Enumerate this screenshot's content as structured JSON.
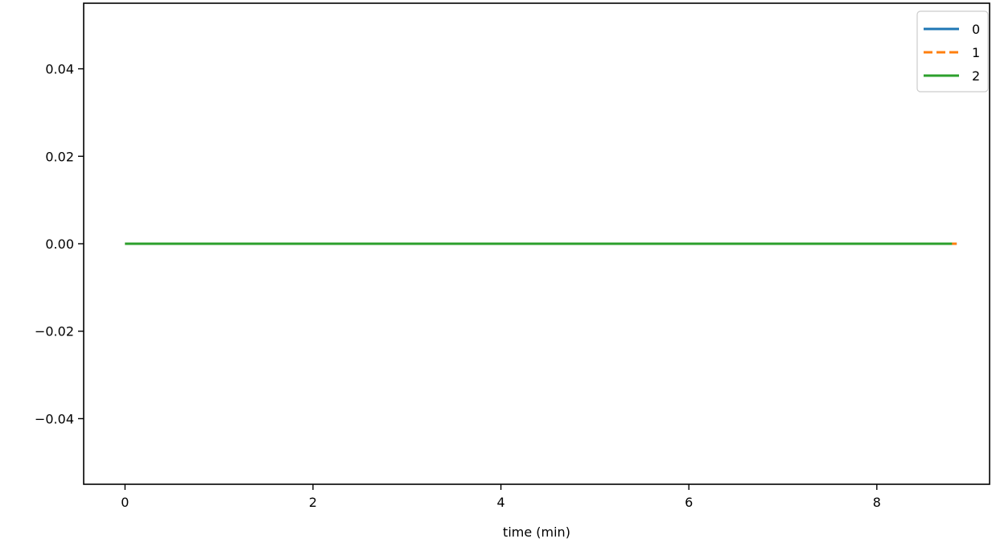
{
  "chart_data": {
    "type": "line",
    "title": "",
    "xlabel": "time (min)",
    "ylabel": "",
    "xlim": [
      -0.44,
      9.2
    ],
    "ylim": [
      -0.055,
      0.055
    ],
    "x_ticks": [
      0,
      2,
      4,
      6,
      8
    ],
    "x_tick_labels": [
      "0",
      "2",
      "4",
      "6",
      "8"
    ],
    "y_ticks": [
      0.04,
      0.02,
      0.0,
      -0.02,
      -0.04
    ],
    "y_tick_labels": [
      "0.04",
      "0.02",
      "0.00",
      "−0.02",
      "−0.04"
    ],
    "grid": false,
    "legend_position": "top-right",
    "series": [
      {
        "name": "0",
        "color": "#1f77b4",
        "dash": "solid",
        "x": [
          0,
          8.85
        ],
        "y": [
          0,
          0
        ]
      },
      {
        "name": "1",
        "color": "#ff7f0e",
        "dash": "dashed",
        "x": [
          0,
          8.85
        ],
        "y": [
          0,
          0
        ]
      },
      {
        "name": "2",
        "color": "#2ca02c",
        "dash": "solid",
        "x": [
          0,
          8.8
        ],
        "y": [
          0,
          0
        ]
      }
    ]
  }
}
